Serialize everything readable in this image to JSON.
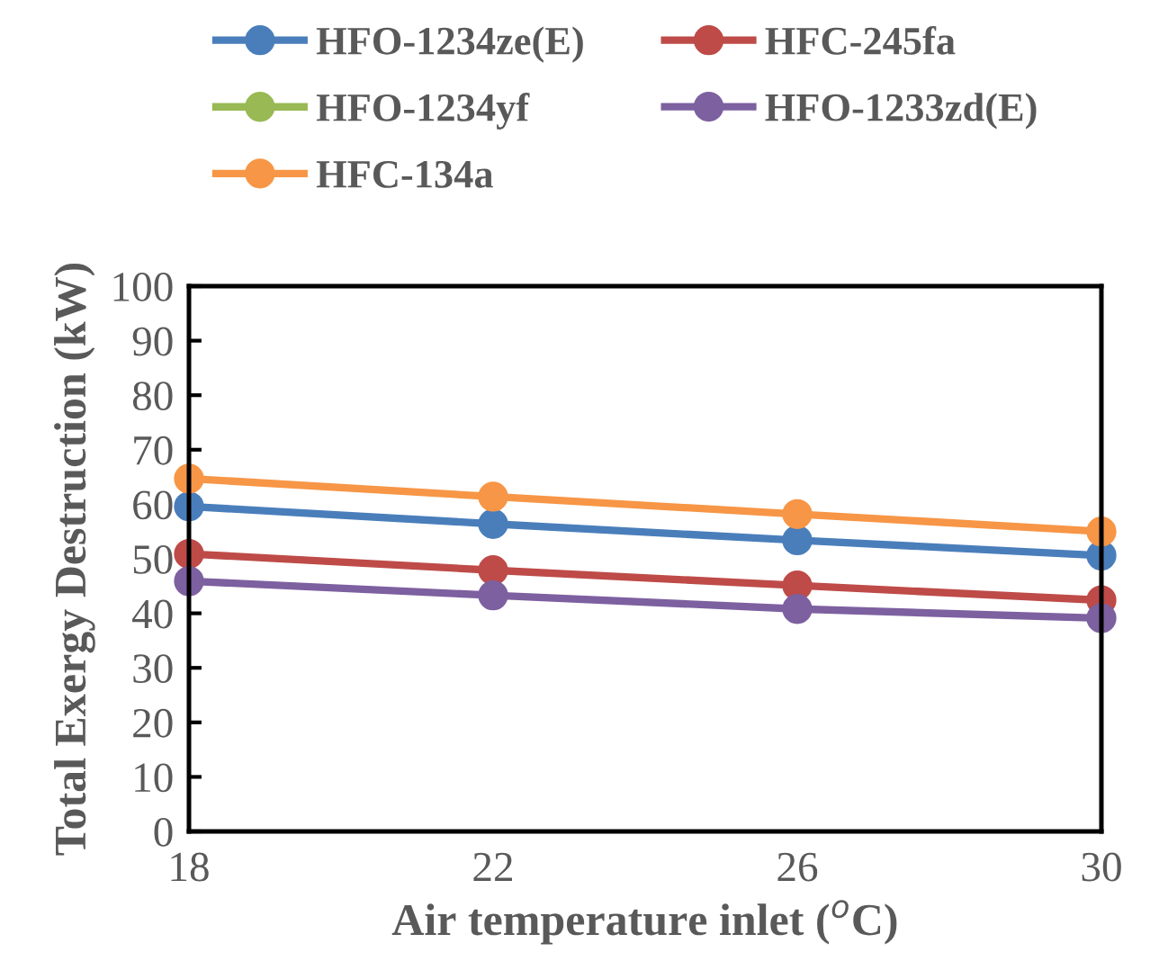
{
  "chart_data": {
    "type": "line",
    "xlabel": "Air temperature inlet ($^{o}$C)",
    "ylabel": "Total Exergy Destruction (kW)",
    "x": [
      18,
      22,
      26,
      30
    ],
    "xlim": [
      18,
      30
    ],
    "xticks": [
      18,
      22,
      26,
      30
    ],
    "ylim": [
      0,
      100
    ],
    "yticks": [
      0,
      10,
      20,
      30,
      40,
      50,
      60,
      70,
      80,
      90,
      100
    ],
    "grid": false,
    "legend": "top",
    "marker": "circle",
    "line_style": "solid",
    "series": [
      {
        "name": "HFO-1234ze(E)",
        "color": "#4a7ebb",
        "values": [
          59.6,
          56.4,
          53.4,
          50.6
        ]
      },
      {
        "name": "HFC-245fa",
        "color": "#be4b48",
        "values": [
          50.9,
          47.9,
          45.1,
          42.4
        ]
      },
      {
        "name": "HFO-1234yf",
        "color": "#98b954",
        "values": [
          null,
          null,
          null,
          null
        ]
      },
      {
        "name": "HFO-1233zd(E)",
        "color": "#7d60a0",
        "values": [
          45.9,
          43.3,
          40.8,
          39.1
        ]
      },
      {
        "name": "HFC-134a",
        "color": "#f79646",
        "values": [
          64.7,
          61.4,
          58.2,
          55.0
        ]
      }
    ]
  }
}
